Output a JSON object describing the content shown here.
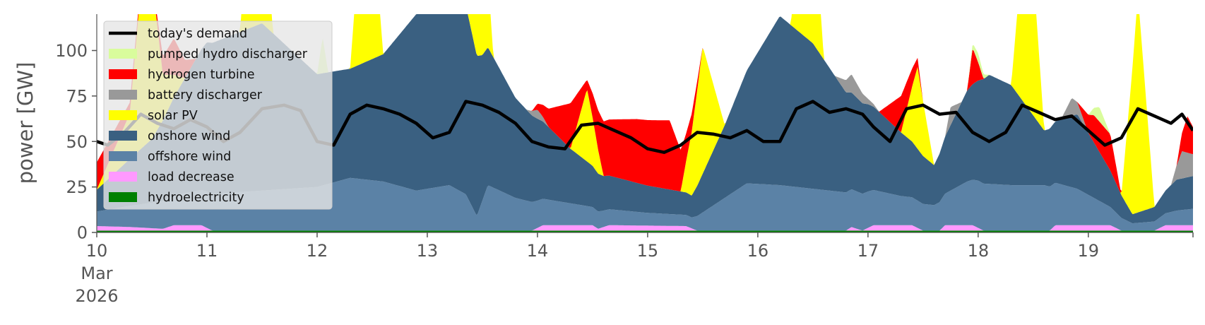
{
  "chart_data": {
    "type": "area",
    "title": "",
    "xlabel": "",
    "ylabel": "power [GW]",
    "ylim": [
      0,
      120
    ],
    "xlim_days": [
      10,
      19.95
    ],
    "stacked": true,
    "grid": false,
    "legend_position": "top-left",
    "y_ticks": [
      0,
      25,
      50,
      75,
      100
    ],
    "x_ticks": [
      {
        "day": 10,
        "label": "10",
        "sub": [
          "Mar",
          "2026"
        ]
      },
      {
        "day": 11,
        "label": "11"
      },
      {
        "day": 12,
        "label": "12"
      },
      {
        "day": 13,
        "label": "13"
      },
      {
        "day": 14,
        "label": "14"
      },
      {
        "day": 15,
        "label": "15"
      },
      {
        "day": 16,
        "label": "16"
      },
      {
        "day": 17,
        "label": "17"
      },
      {
        "day": 18,
        "label": "18"
      },
      {
        "day": 19,
        "label": "19"
      }
    ],
    "series": [
      {
        "name": "hydroelectricity",
        "color": "#008000",
        "points": [
          [
            10,
            1
          ],
          [
            12,
            1
          ],
          [
            14,
            1
          ],
          [
            16,
            1
          ],
          [
            18,
            1
          ],
          [
            19.95,
            1
          ]
        ]
      },
      {
        "name": "load decrease",
        "color": "#ff99ff",
        "points": [
          [
            10,
            2.5
          ],
          [
            10.3,
            2
          ],
          [
            10.6,
            1
          ],
          [
            10.7,
            3
          ],
          [
            10.95,
            3
          ],
          [
            11.05,
            0
          ],
          [
            13.95,
            0
          ],
          [
            14.05,
            3
          ],
          [
            14.5,
            3
          ],
          [
            14.55,
            1
          ],
          [
            14.65,
            3
          ],
          [
            15.35,
            2.5
          ],
          [
            15.45,
            0
          ],
          [
            16.8,
            0
          ],
          [
            16.85,
            2
          ],
          [
            16.95,
            0
          ],
          [
            17.05,
            3
          ],
          [
            17.4,
            3
          ],
          [
            17.5,
            0
          ],
          [
            17.65,
            0
          ],
          [
            17.7,
            3
          ],
          [
            17.95,
            3
          ],
          [
            18.05,
            0
          ],
          [
            18.65,
            0
          ],
          [
            18.7,
            3
          ],
          [
            19.2,
            3
          ],
          [
            19.3,
            0
          ],
          [
            19.6,
            0
          ],
          [
            19.7,
            3
          ],
          [
            19.95,
            3
          ]
        ]
      },
      {
        "name": "offshore wind",
        "color": "#5b82a6",
        "points": [
          [
            10,
            8
          ],
          [
            10.5,
            14
          ],
          [
            11,
            20
          ],
          [
            11.5,
            22
          ],
          [
            12,
            24
          ],
          [
            12.3,
            29
          ],
          [
            12.6,
            27
          ],
          [
            12.9,
            22
          ],
          [
            13.2,
            25
          ],
          [
            13.35,
            20
          ],
          [
            13.45,
            8
          ],
          [
            13.55,
            25
          ],
          [
            13.8,
            18
          ],
          [
            14,
            15
          ],
          [
            14.3,
            12
          ],
          [
            14.6,
            9
          ],
          [
            15,
            7
          ],
          [
            15.4,
            6
          ],
          [
            15.7,
            18
          ],
          [
            15.9,
            26
          ],
          [
            16.2,
            25
          ],
          [
            16.5,
            23
          ],
          [
            16.8,
            21
          ],
          [
            17,
            20
          ],
          [
            17.3,
            16
          ],
          [
            17.6,
            14
          ],
          [
            17.9,
            24
          ],
          [
            18,
            26
          ],
          [
            18.3,
            25
          ],
          [
            18.6,
            25
          ],
          [
            18.9,
            20
          ],
          [
            19.2,
            10
          ],
          [
            19.4,
            4
          ],
          [
            19.6,
            5
          ],
          [
            19.8,
            8
          ],
          [
            19.95,
            9
          ]
        ]
      },
      {
        "name": "onshore wind",
        "color": "#3a6081",
        "points": [
          [
            10,
            12
          ],
          [
            10.5,
            35
          ],
          [
            11,
            82
          ],
          [
            11.5,
            92
          ],
          [
            12,
            62
          ],
          [
            12.3,
            60
          ],
          [
            12.6,
            70
          ],
          [
            12.9,
            97
          ],
          [
            13.2,
            100
          ],
          [
            13.35,
            104
          ],
          [
            13.5,
            80
          ],
          [
            13.8,
            55
          ],
          [
            14,
            45
          ],
          [
            14.3,
            30
          ],
          [
            14.6,
            19
          ],
          [
            15,
            15
          ],
          [
            15.4,
            12
          ],
          [
            15.7,
            40
          ],
          [
            15.9,
            62
          ],
          [
            16.2,
            93
          ],
          [
            16.5,
            80
          ],
          [
            16.8,
            55
          ],
          [
            17,
            48
          ],
          [
            17.3,
            35
          ],
          [
            17.6,
            22
          ],
          [
            17.9,
            50
          ],
          [
            18.1,
            60
          ],
          [
            18.3,
            55
          ],
          [
            18.6,
            30
          ],
          [
            18.9,
            41
          ],
          [
            19.2,
            20
          ],
          [
            19.4,
            5
          ],
          [
            19.6,
            8
          ],
          [
            19.8,
            17
          ],
          [
            19.95,
            18
          ]
        ]
      },
      {
        "name": "solar PV",
        "color": "#ffff00",
        "points": [
          [
            10,
            0
          ],
          [
            10.3,
            25
          ],
          [
            10.45,
            120
          ],
          [
            10.6,
            25
          ],
          [
            10.8,
            0
          ],
          [
            11.3,
            0
          ],
          [
            11.45,
            120
          ],
          [
            11.6,
            0
          ],
          [
            12.3,
            0
          ],
          [
            12.45,
            120
          ],
          [
            12.6,
            0
          ],
          [
            13.3,
            0
          ],
          [
            13.45,
            120
          ],
          [
            13.6,
            0
          ],
          [
            14.3,
            0
          ],
          [
            14.45,
            40
          ],
          [
            14.6,
            0
          ],
          [
            15.3,
            0
          ],
          [
            15.5,
            70
          ],
          [
            15.7,
            0
          ],
          [
            16.3,
            0
          ],
          [
            16.45,
            120
          ],
          [
            16.6,
            0
          ],
          [
            17.3,
            0
          ],
          [
            17.45,
            45
          ],
          [
            17.6,
            0
          ],
          [
            18.3,
            0
          ],
          [
            18.45,
            120
          ],
          [
            18.6,
            0
          ],
          [
            19.3,
            0
          ],
          [
            19.45,
            120
          ],
          [
            19.6,
            0
          ],
          [
            19.95,
            0
          ]
        ]
      },
      {
        "name": "battery discharger",
        "color": "#999999",
        "points": [
          [
            10,
            0
          ],
          [
            13,
            0
          ],
          [
            13.2,
            5
          ],
          [
            13.35,
            12
          ],
          [
            13.5,
            0
          ],
          [
            13.9,
            0
          ],
          [
            14,
            5
          ],
          [
            14.1,
            0
          ],
          [
            16.7,
            0
          ],
          [
            16.85,
            10
          ],
          [
            17,
            3
          ],
          [
            17.1,
            0
          ],
          [
            17.7,
            0
          ],
          [
            17.75,
            10
          ],
          [
            17.85,
            0
          ],
          [
            18.75,
            0
          ],
          [
            18.85,
            10
          ],
          [
            19,
            0
          ],
          [
            19.75,
            0
          ],
          [
            19.85,
            15
          ],
          [
            19.95,
            12
          ]
        ]
      },
      {
        "name": "hydrogen turbine",
        "color": "#ff0000",
        "points": [
          [
            10,
            15
          ],
          [
            10.5,
            0
          ],
          [
            10.7,
            20
          ],
          [
            10.9,
            0
          ],
          [
            13.95,
            0
          ],
          [
            14.1,
            10
          ],
          [
            14.3,
            25
          ],
          [
            14.45,
            5
          ],
          [
            14.6,
            30
          ],
          [
            14.9,
            35
          ],
          [
            15.2,
            38
          ],
          [
            15.35,
            15
          ],
          [
            15.5,
            0
          ],
          [
            17.1,
            0
          ],
          [
            17.3,
            20
          ],
          [
            17.5,
            0
          ],
          [
            17.9,
            0
          ],
          [
            17.95,
            20
          ],
          [
            18.05,
            0
          ],
          [
            18.9,
            0
          ],
          [
            19.05,
            15
          ],
          [
            19.2,
            20
          ],
          [
            19.3,
            0
          ],
          [
            19.8,
            0
          ],
          [
            19.9,
            20
          ],
          [
            19.95,
            15
          ]
        ]
      },
      {
        "name": "pumped hydro discharger",
        "color": "#d9fc9c",
        "points": [
          [
            10,
            0
          ],
          [
            12,
            0
          ],
          [
            12.05,
            20
          ],
          [
            12.1,
            0
          ],
          [
            12.9,
            0
          ],
          [
            13,
            10
          ],
          [
            13.1,
            5
          ],
          [
            13.2,
            0
          ],
          [
            17.9,
            0
          ],
          [
            18,
            5
          ],
          [
            18.1,
            0
          ],
          [
            19,
            0
          ],
          [
            19.1,
            8
          ],
          [
            19.2,
            0
          ],
          [
            19.95,
            0
          ]
        ]
      }
    ],
    "demand": {
      "name": "today's demand",
      "color": "#000000",
      "points": [
        [
          10,
          50
        ],
        [
          10.1,
          48
        ],
        [
          10.25,
          55
        ],
        [
          10.4,
          65
        ],
        [
          10.55,
          60
        ],
        [
          10.7,
          57
        ],
        [
          10.85,
          62
        ],
        [
          11,
          58
        ],
        [
          11.15,
          50
        ],
        [
          11.3,
          55
        ],
        [
          11.5,
          68
        ],
        [
          11.7,
          70
        ],
        [
          11.85,
          67
        ],
        [
          12,
          50
        ],
        [
          12.15,
          48
        ],
        [
          12.3,
          65
        ],
        [
          12.45,
          70
        ],
        [
          12.6,
          68
        ],
        [
          12.75,
          65
        ],
        [
          12.9,
          60
        ],
        [
          13.05,
          52
        ],
        [
          13.2,
          55
        ],
        [
          13.35,
          72
        ],
        [
          13.5,
          70
        ],
        [
          13.65,
          66
        ],
        [
          13.8,
          60
        ],
        [
          13.95,
          50
        ],
        [
          14.1,
          47
        ],
        [
          14.25,
          46
        ],
        [
          14.4,
          59
        ],
        [
          14.55,
          60
        ],
        [
          14.7,
          56
        ],
        [
          14.85,
          52
        ],
        [
          15,
          46
        ],
        [
          15.15,
          44
        ],
        [
          15.3,
          48
        ],
        [
          15.45,
          55
        ],
        [
          15.6,
          54
        ],
        [
          15.75,
          52
        ],
        [
          15.9,
          56
        ],
        [
          16.05,
          50
        ],
        [
          16.2,
          50
        ],
        [
          16.35,
          68
        ],
        [
          16.5,
          72
        ],
        [
          16.65,
          66
        ],
        [
          16.8,
          68
        ],
        [
          16.95,
          65
        ],
        [
          17.05,
          58
        ],
        [
          17.2,
          50
        ],
        [
          17.35,
          68
        ],
        [
          17.5,
          70
        ],
        [
          17.65,
          65
        ],
        [
          17.8,
          66
        ],
        [
          17.95,
          55
        ],
        [
          18.1,
          50
        ],
        [
          18.25,
          55
        ],
        [
          18.4,
          70
        ],
        [
          18.55,
          66
        ],
        [
          18.7,
          62
        ],
        [
          18.85,
          64
        ],
        [
          19,
          56
        ],
        [
          19.15,
          48
        ],
        [
          19.3,
          52
        ],
        [
          19.45,
          68
        ],
        [
          19.6,
          64
        ],
        [
          19.75,
          60
        ],
        [
          19.85,
          65
        ],
        [
          19.95,
          56
        ]
      ]
    },
    "legend": [
      {
        "label": "today's demand",
        "color": "#000000",
        "kind": "line"
      },
      {
        "label": "pumped hydro discharger",
        "color": "#d9fc9c",
        "kind": "patch"
      },
      {
        "label": "hydrogen turbine",
        "color": "#ff0000",
        "kind": "patch"
      },
      {
        "label": "battery discharger",
        "color": "#999999",
        "kind": "patch"
      },
      {
        "label": "solar PV",
        "color": "#ffff00",
        "kind": "patch"
      },
      {
        "label": "onshore wind",
        "color": "#3a6081",
        "kind": "patch"
      },
      {
        "label": "offshore wind",
        "color": "#5b82a6",
        "kind": "patch"
      },
      {
        "label": "load decrease",
        "color": "#ff99ff",
        "kind": "patch"
      },
      {
        "label": "hydroelectricity",
        "color": "#008000",
        "kind": "patch"
      }
    ]
  }
}
